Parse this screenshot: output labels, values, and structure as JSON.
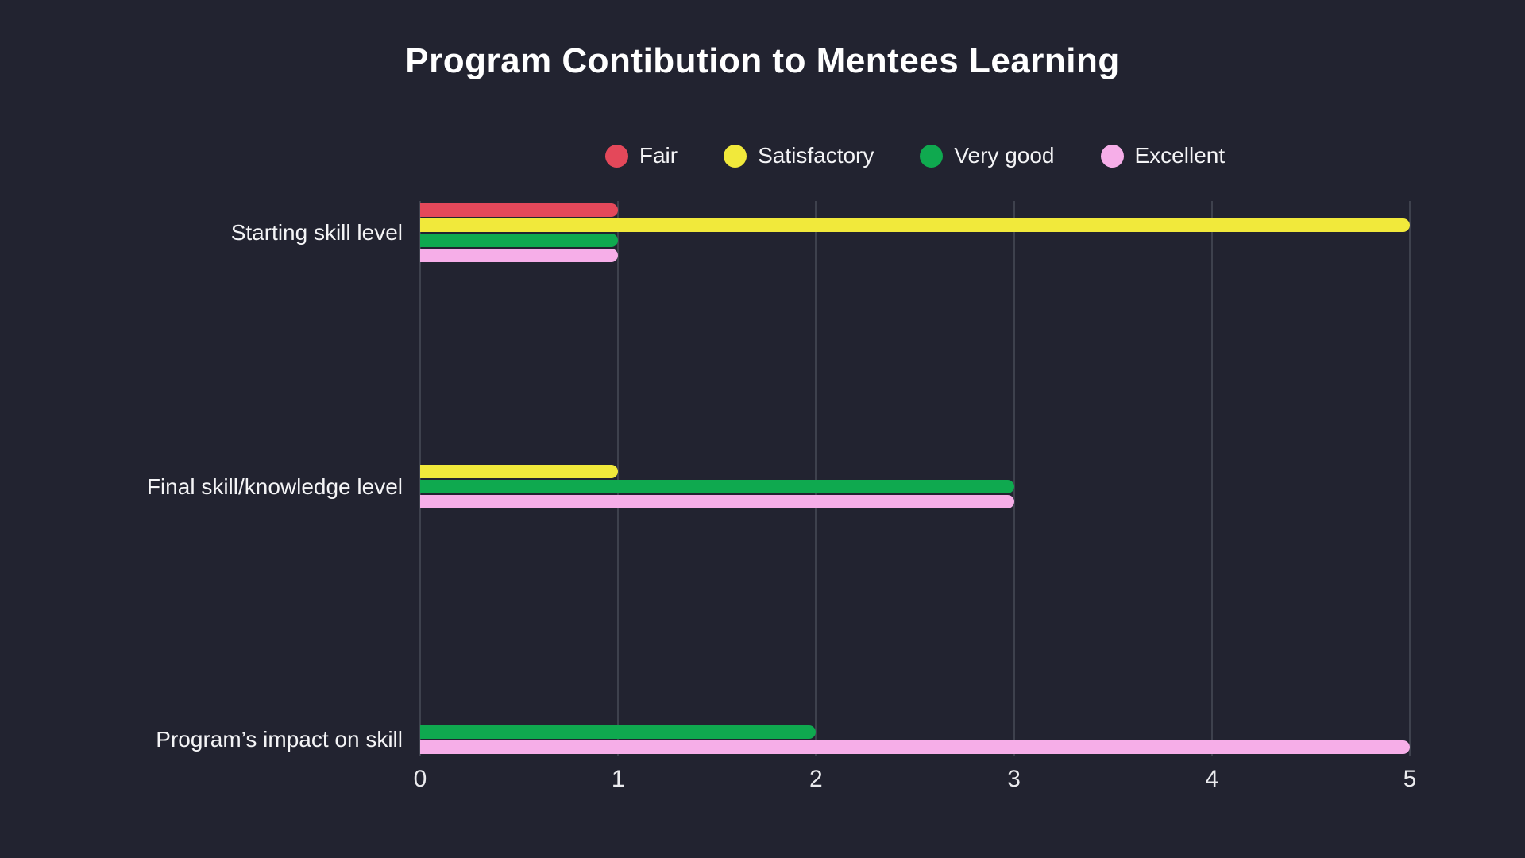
{
  "title": "Program Contibution to Mentees Learning",
  "colors": {
    "background": "#222330",
    "gridline": "#3e414d",
    "title_text": "#ffffff",
    "label_text": "#f4f4f6",
    "tick_text": "#ebebee"
  },
  "legend": {
    "position": "top",
    "items": [
      {
        "label": "Fair",
        "color": "#e4485a"
      },
      {
        "label": "Satisfactory",
        "color": "#f1e93b"
      },
      {
        "label": "Very good",
        "color": "#0fa94f"
      },
      {
        "label": "Excellent",
        "color": "#f6aee8"
      }
    ]
  },
  "chart_data": {
    "type": "bar",
    "orientation": "horizontal",
    "title": "Program Contibution to Mentees Learning",
    "categories": [
      "Starting skill level",
      "Final skill/knowledge level",
      "Program’s impact on skill"
    ],
    "series": [
      {
        "name": "Fair",
        "color": "#e4485a",
        "values": [
          1,
          0,
          0
        ]
      },
      {
        "name": "Satisfactory",
        "color": "#f1e93b",
        "values": [
          5,
          1,
          0
        ]
      },
      {
        "name": "Very good",
        "color": "#0fa94f",
        "values": [
          1,
          3,
          2
        ]
      },
      {
        "name": "Excellent",
        "color": "#f6aee8",
        "values": [
          1,
          3,
          5
        ]
      }
    ],
    "xlabel": "",
    "ylabel": "",
    "xlim": [
      0,
      5
    ],
    "x_ticks": [
      0,
      1,
      2,
      3,
      4,
      5
    ],
    "grid": "vertical",
    "legend_position": "top",
    "note": "zero values mean the bar is not drawn for that category"
  }
}
